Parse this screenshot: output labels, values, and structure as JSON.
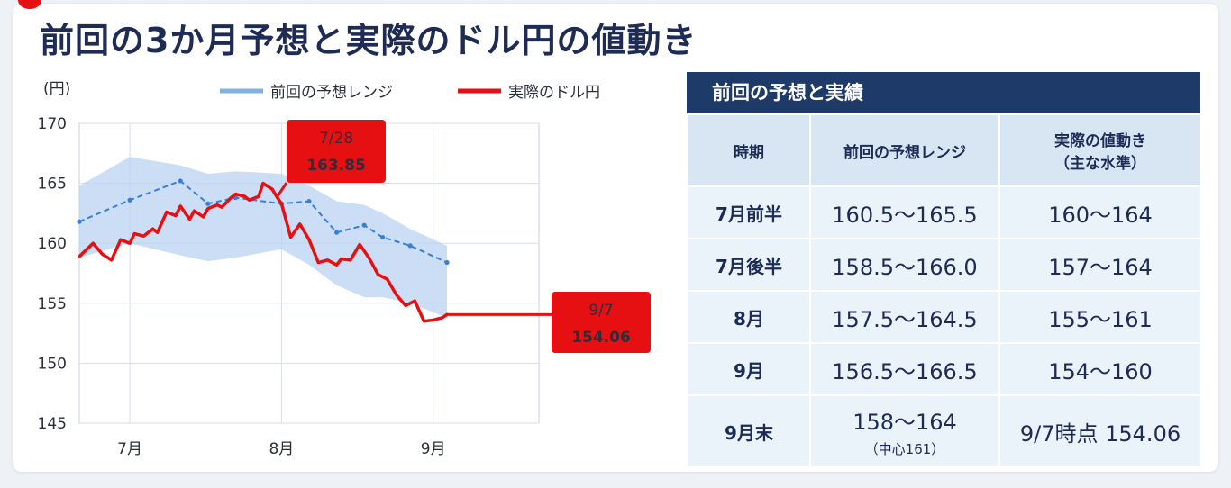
{
  "title": "前回の3か月予想と実際のドル円の値動き",
  "colors": {
    "forecast": "#3a7fd5",
    "forecast_band": "#b9d3f1",
    "actual": "#e60f12",
    "table_header": "#1d3a68",
    "title": "#1d2b55"
  },
  "chart_data": {
    "type": "line",
    "y_unit": "(円)",
    "ylim": [
      145,
      170
    ],
    "yticks": [
      145,
      150,
      155,
      160,
      165,
      170
    ],
    "xlim": [
      0,
      100
    ],
    "x_tick_labels": [
      {
        "x": 11,
        "label": "7月"
      },
      {
        "x": 44,
        "label": "8月"
      },
      {
        "x": 77,
        "label": "9月"
      }
    ],
    "grid": true,
    "legend_position": "top",
    "series": [
      {
        "name": "前回の予想レンジ",
        "style": "dashed",
        "x": [
          0,
          11,
          22,
          28,
          34,
          44,
          50,
          56,
          62,
          66,
          72,
          80
        ],
        "y": [
          161.8,
          163.6,
          165.2,
          163.3,
          163.8,
          163.3,
          163.5,
          160.9,
          161.5,
          160.5,
          159.8,
          158.4
        ],
        "band_upper": [
          164.8,
          167.2,
          166.5,
          165.8,
          166.0,
          165.8,
          164.8,
          163.5,
          163.2,
          162.5,
          161.2,
          159.8
        ],
        "band_lower": [
          158.8,
          160.0,
          159.0,
          158.5,
          158.8,
          159.5,
          158.2,
          156.5,
          155.5,
          155.5,
          155.0,
          153.8
        ]
      },
      {
        "name": "実際のドル円",
        "style": "solid",
        "x": [
          0,
          3,
          5,
          7,
          9,
          11,
          12,
          14,
          16,
          17,
          19,
          21,
          22,
          24,
          25,
          27,
          28,
          30,
          31,
          33,
          34,
          36,
          37,
          39,
          40,
          42,
          43,
          44,
          46,
          48,
          50,
          52,
          54,
          56,
          57,
          59,
          61,
          63,
          65,
          67,
          69,
          71,
          73,
          75,
          77,
          79,
          80
        ],
        "y": [
          158.9,
          160.0,
          159.1,
          158.6,
          160.3,
          160.0,
          160.8,
          160.6,
          161.2,
          160.9,
          162.6,
          162.3,
          163.1,
          162.0,
          162.7,
          162.2,
          162.9,
          163.2,
          163.0,
          163.8,
          164.1,
          163.9,
          163.6,
          163.9,
          165.0,
          164.5,
          163.85,
          163.3,
          160.5,
          161.6,
          160.3,
          158.4,
          158.6,
          158.2,
          158.7,
          158.6,
          159.9,
          158.8,
          157.4,
          157.0,
          155.7,
          154.8,
          155.2,
          153.5,
          153.6,
          153.8,
          154.06
        ]
      }
    ],
    "annotations": [
      {
        "x": 43,
        "y": 163.85,
        "date": "7/28",
        "value": "163.85"
      },
      {
        "x": 80,
        "y": 154.06,
        "date": "9/7",
        "value": "154.06"
      }
    ]
  },
  "table": {
    "header": "前回の予想と実績",
    "columns": [
      "時期",
      "前回の予想レンジ",
      "実際の値動き",
      "（主な水準）"
    ],
    "rows": [
      {
        "period": "7月前半",
        "forecast": "160.5～165.5",
        "actual": "160～164"
      },
      {
        "period": "7月後半",
        "forecast": "158.5～166.0",
        "actual": "157～164"
      },
      {
        "period": "8月",
        "forecast": "157.5～164.5",
        "actual": "155～161"
      },
      {
        "period": "9月",
        "forecast": "156.5～166.5",
        "actual": "154～160"
      },
      {
        "period": "9月末",
        "forecast": "158～164",
        "forecast_note": "（中心161）",
        "actual": "9/7時点 154.06"
      }
    ]
  }
}
